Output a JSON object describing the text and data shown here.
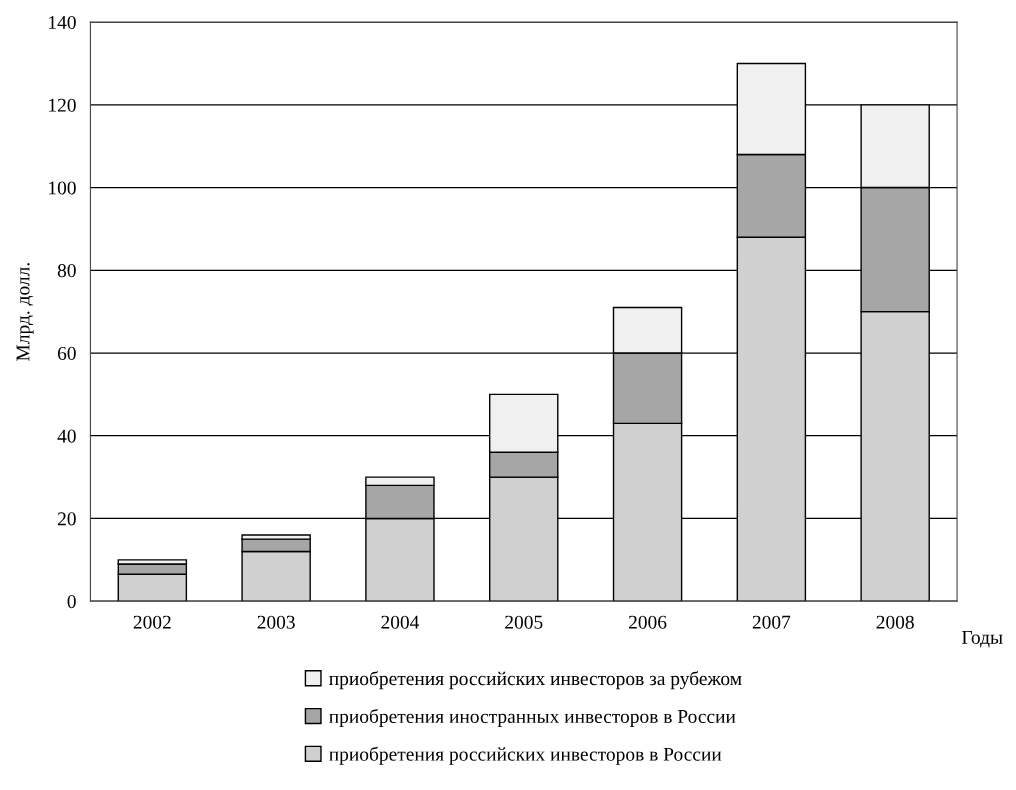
{
  "chart_data": {
    "type": "bar",
    "stacked": true,
    "xlabel": "Годы",
    "ylabel": "Млрд. долл.",
    "categories": [
      "2002",
      "2003",
      "2004",
      "2005",
      "2006",
      "2007",
      "2008"
    ],
    "series": [
      {
        "name": "приобретения российских инвесторов в России",
        "color": "#d0d0d0",
        "values": [
          6.5,
          12,
          20,
          30,
          43,
          88,
          70
        ]
      },
      {
        "name": "приобретения иностранных инвесторов в России",
        "color": "#a6a6a6",
        "values": [
          2.5,
          3,
          8,
          6,
          17,
          20,
          30
        ]
      },
      {
        "name": "приобретения российских инвесторов за рубежом",
        "color": "#f0f0f0",
        "values": [
          1,
          1,
          2,
          14,
          11,
          22,
          20
        ]
      }
    ],
    "ylim": [
      0,
      140
    ],
    "yticks": [
      0,
      20,
      40,
      60,
      80,
      100,
      120,
      140
    ],
    "grid": "y",
    "legend": "bottom"
  }
}
